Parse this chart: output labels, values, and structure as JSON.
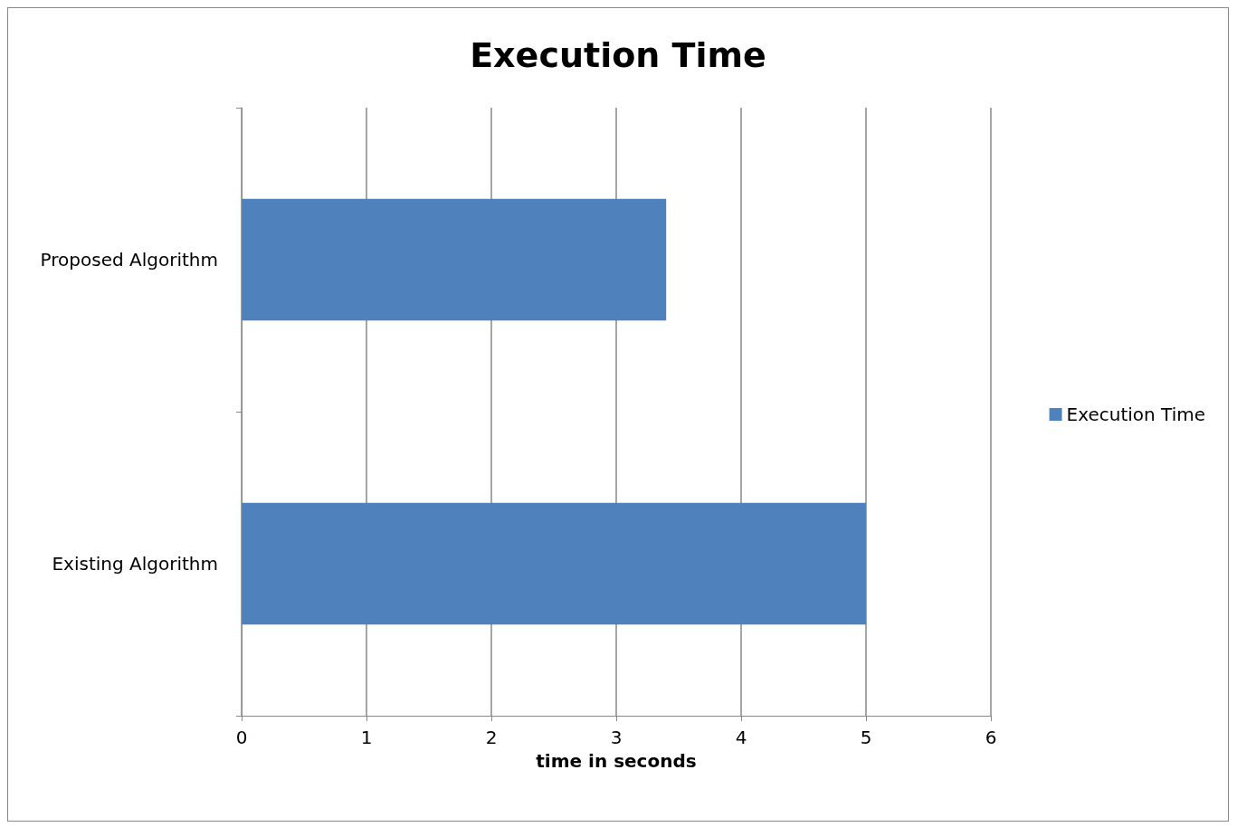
{
  "chart_data": {
    "type": "bar",
    "title": "Execution Time",
    "xlabel": "time in seconds",
    "orientation": "horizontal",
    "categories": [
      "Proposed Algorithm",
      "Existing Algorithm"
    ],
    "series": [
      {
        "name": "Execution Time",
        "color": "#4f81bd",
        "values": [
          3.4,
          5
        ]
      }
    ],
    "xlim": [
      0,
      6
    ],
    "xticks": [
      0,
      1,
      2,
      3,
      4,
      5,
      6
    ],
    "grid": "x",
    "legend": "right"
  }
}
